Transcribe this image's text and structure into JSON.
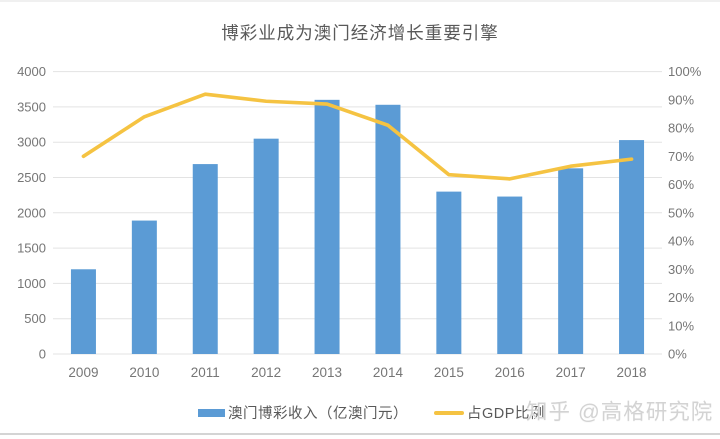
{
  "page": {
    "watermark": "知乎 @高格研究院"
  },
  "colors": {
    "bar": "#5B9BD5",
    "line": "#F5C342",
    "grid": "#E3E3E3",
    "axis_text": "#767676",
    "title_text": "#595959",
    "watermark": "#D3D3D3"
  },
  "chart_data": {
    "type": "bar+line",
    "title": "博彩业成为澳门经济增长重要引擎",
    "categories": [
      "2009",
      "2010",
      "2011",
      "2012",
      "2013",
      "2014",
      "2015",
      "2016",
      "2017",
      "2018"
    ],
    "series": [
      {
        "name": "澳门博彩收入（亿澳门元）",
        "type": "bar",
        "axis": "left",
        "values": [
          1200,
          1890,
          2690,
          3050,
          3600,
          3530,
          2300,
          2230,
          2630,
          3030
        ]
      },
      {
        "name": "占GDP比例",
        "type": "line",
        "axis": "right",
        "values": [
          70,
          84,
          92,
          89.5,
          88.5,
          81,
          63.5,
          62,
          66.5,
          69
        ]
      }
    ],
    "left_axis": {
      "min": 0,
      "max": 4000,
      "step": 500,
      "suffix": ""
    },
    "right_axis": {
      "min": 0,
      "max": 100,
      "step": 10,
      "suffix": "%"
    },
    "grid": true,
    "legend_position": "bottom"
  }
}
